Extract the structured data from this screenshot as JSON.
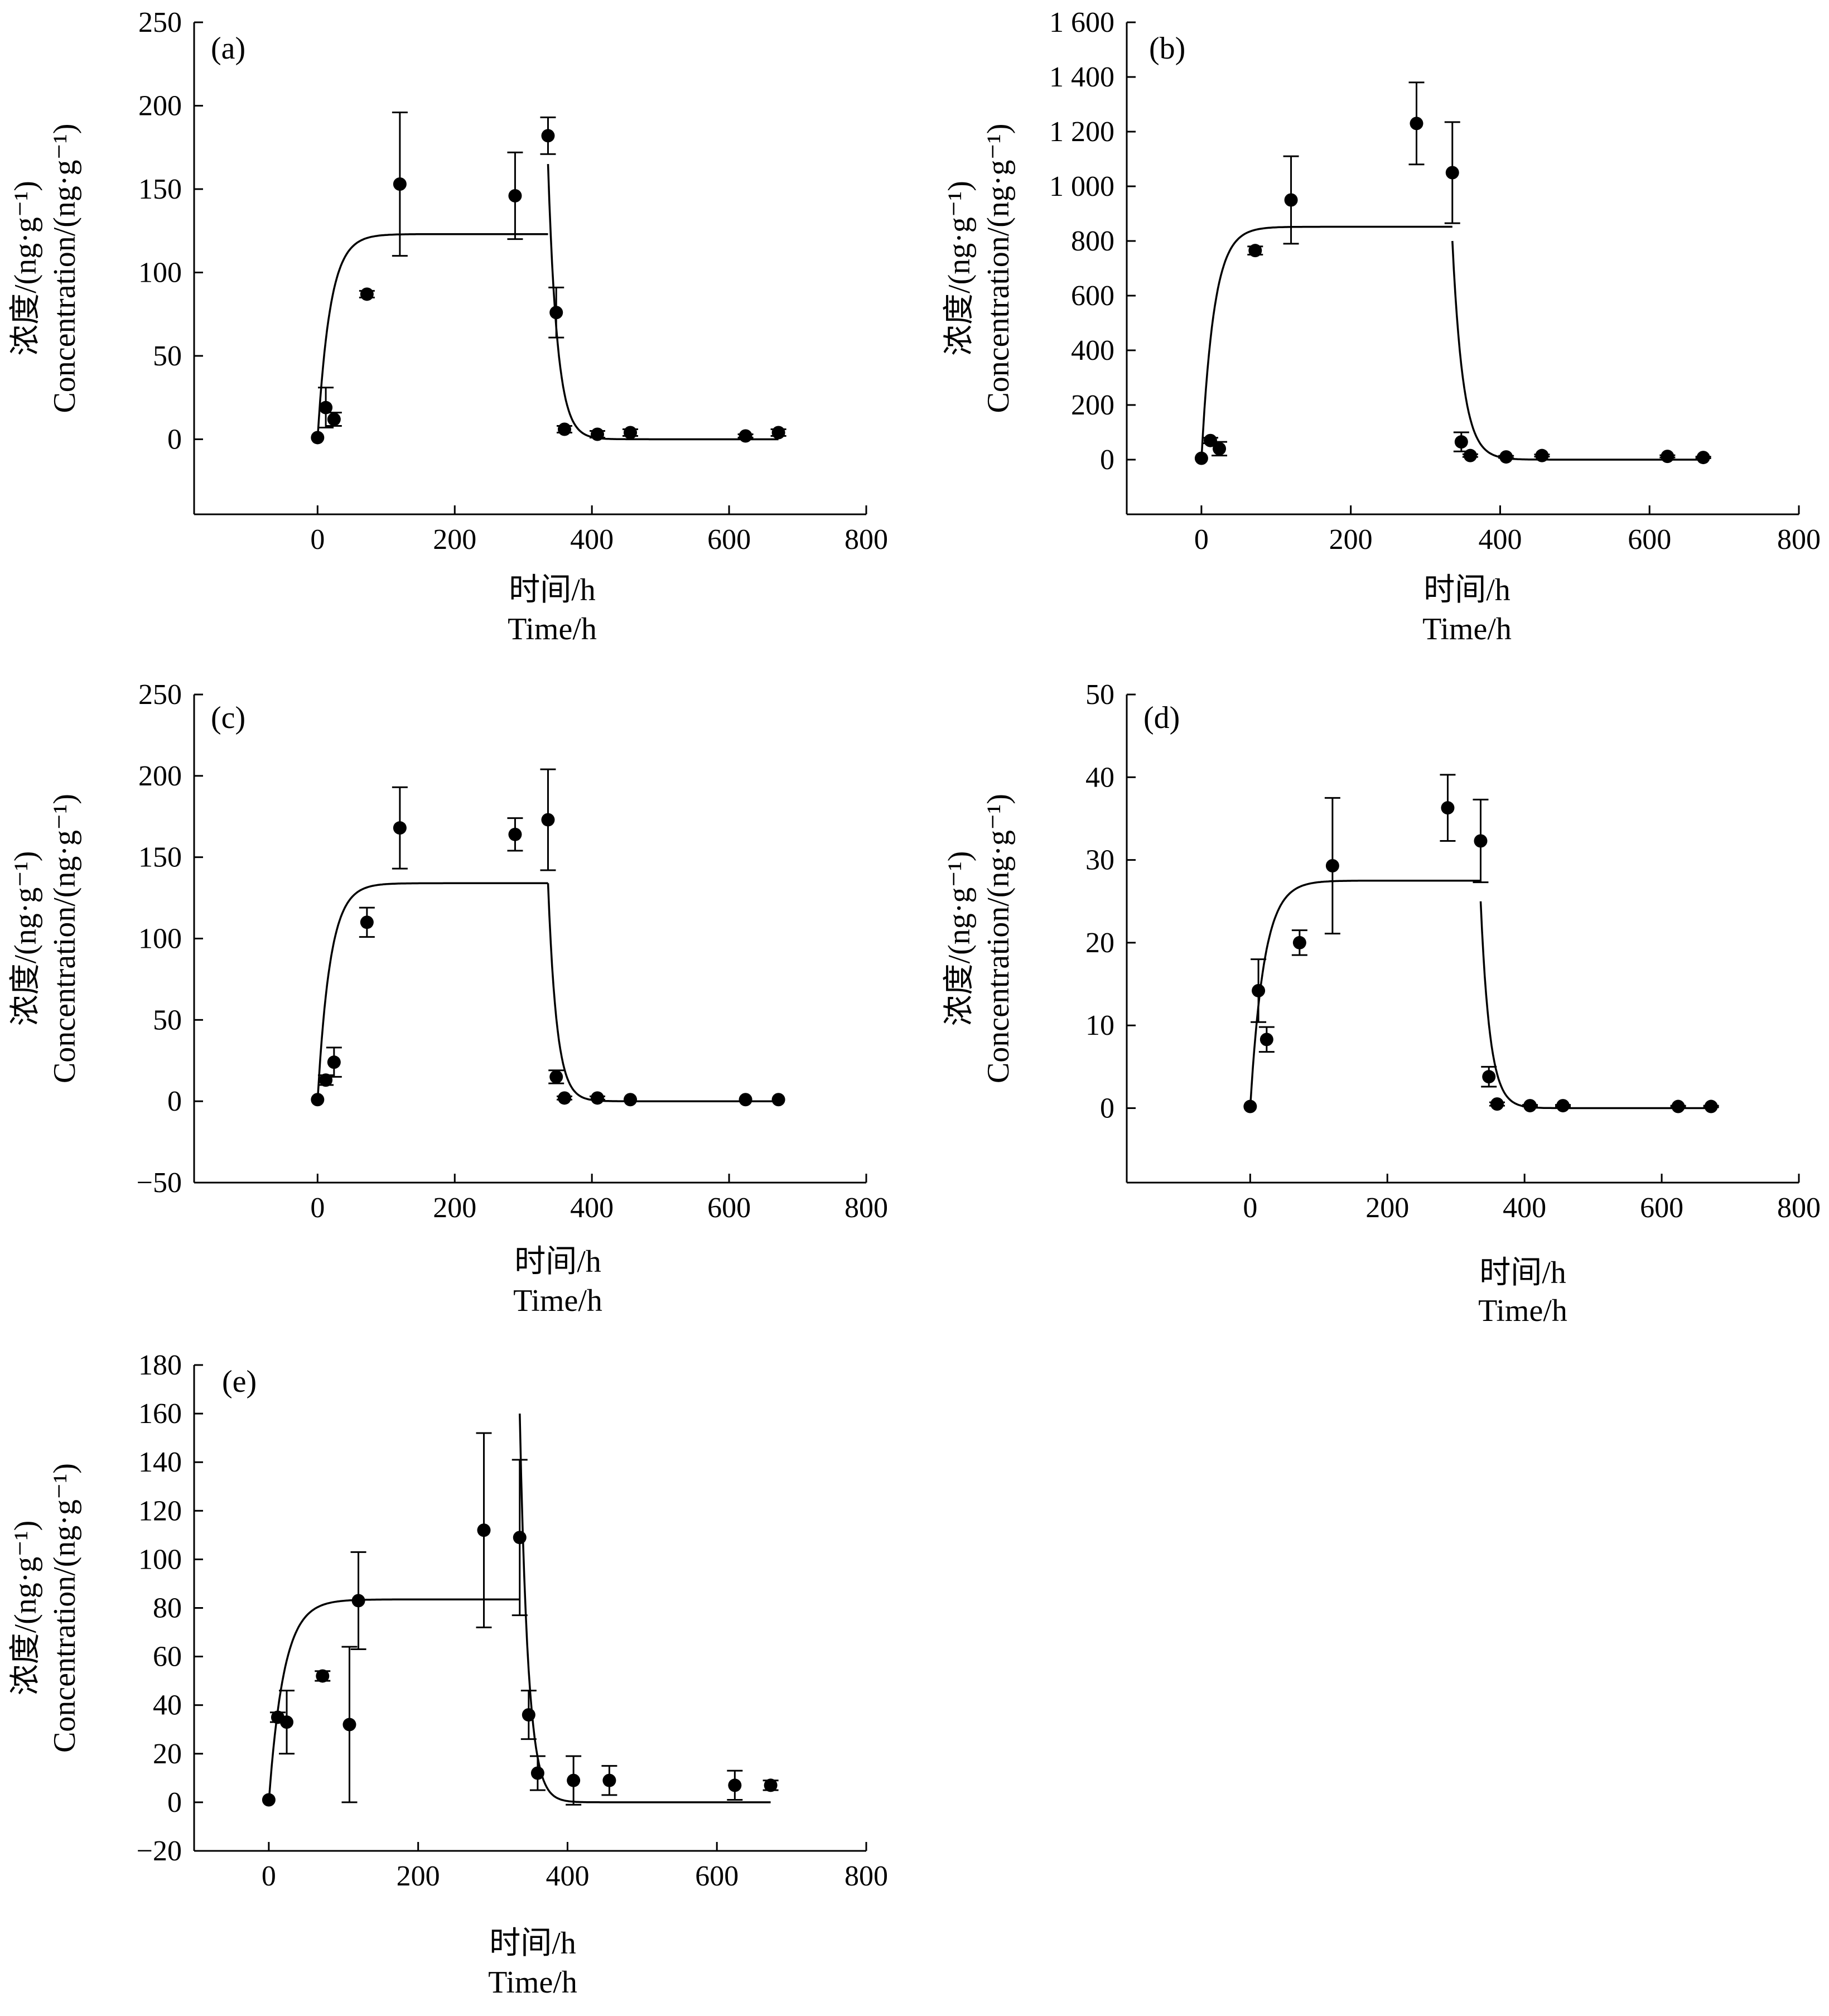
{
  "figure": {
    "panels": [
      {
        "label": "(a)",
        "xlabel_cn": "时间/h",
        "xlabel_en": "Time/h",
        "ylabel_cn": "浓度/(ng·g⁻¹)",
        "ylabel_en": "Concentration/(ng·g⁻¹)"
      },
      {
        "label": "(b)",
        "xlabel_cn": "时间/h",
        "xlabel_en": "Time/h",
        "ylabel_cn": "浓度/(ng·g⁻¹)",
        "ylabel_en": "Concentration/(ng·g⁻¹)"
      },
      {
        "label": "(c)",
        "xlabel_cn": "时间/h",
        "xlabel_en": "Time/h",
        "ylabel_cn": "浓度/(ng·g⁻¹)",
        "ylabel_en": "Concentration/(ng·g⁻¹)"
      },
      {
        "label": "(d)",
        "xlabel_cn": "时间/h",
        "xlabel_en": "Time/h",
        "ylabel_cn": "浓度/(ng·g⁻¹)",
        "ylabel_en": "Concentration/(ng·g⁻¹)"
      },
      {
        "label": "(e)",
        "xlabel_cn": "时间/h",
        "xlabel_en": "Time/h",
        "ylabel_cn": "浓度/(ng·g⁻¹)",
        "ylabel_en": "Concentration/(ng·g⁻¹)"
      }
    ]
  },
  "chart_data": [
    {
      "type": "scatter",
      "panel": "(a)",
      "xlim": [
        -180,
        800
      ],
      "ylim": [
        -45,
        250
      ],
      "xticks": [
        0,
        200,
        400,
        600,
        800
      ],
      "xtick_labels": [
        "0",
        "200",
        "400",
        "600",
        "800"
      ],
      "yticks": [
        0,
        50,
        100,
        150,
        200,
        250
      ],
      "ytick_labels": [
        "0",
        "50",
        "100",
        "150",
        "200",
        "250"
      ],
      "points": [
        {
          "x": 0,
          "y": 1,
          "err": 0
        },
        {
          "x": 12,
          "y": 19,
          "err": 12
        },
        {
          "x": 24,
          "y": 12,
          "err": 4
        },
        {
          "x": 72,
          "y": 87,
          "err": 2
        },
        {
          "x": 120,
          "y": 153,
          "err": 43
        },
        {
          "x": 288,
          "y": 146,
          "err": 26
        },
        {
          "x": 336,
          "y": 182,
          "err": 11
        },
        {
          "x": 348,
          "y": 76,
          "err": 15
        },
        {
          "x": 360,
          "y": 6,
          "err": 2
        },
        {
          "x": 408,
          "y": 3,
          "err": 2
        },
        {
          "x": 456,
          "y": 4,
          "err": 2
        },
        {
          "x": 624,
          "y": 2,
          "err": 1
        },
        {
          "x": 672,
          "y": 4,
          "err": 2
        }
      ],
      "fit": {
        "uptake_plateau": 123,
        "uptake_rate": 0.055,
        "depuration_start": 336,
        "depuration_c0": 165,
        "depuration_rate": 0.075
      }
    },
    {
      "type": "scatter",
      "panel": "(b)",
      "xlim": [
        -100,
        800
      ],
      "ylim": [
        -200,
        1600
      ],
      "xticks": [
        0,
        200,
        400,
        600,
        800
      ],
      "xtick_labels": [
        "0",
        "200",
        "400",
        "600",
        "800"
      ],
      "yticks": [
        0,
        200,
        400,
        600,
        800,
        1000,
        1200,
        1400,
        1600
      ],
      "ytick_labels": [
        "0",
        "200",
        "400",
        "600",
        "800",
        "1 000",
        "1 200",
        "1 400",
        "1 600"
      ],
      "points": [
        {
          "x": 0,
          "y": 5,
          "err": 0
        },
        {
          "x": 12,
          "y": 70,
          "err": 10
        },
        {
          "x": 24,
          "y": 40,
          "err": 25
        },
        {
          "x": 72,
          "y": 765,
          "err": 15
        },
        {
          "x": 120,
          "y": 950,
          "err": 160
        },
        {
          "x": 288,
          "y": 1230,
          "err": 150
        },
        {
          "x": 336,
          "y": 1050,
          "err": 185
        },
        {
          "x": 348,
          "y": 65,
          "err": 35
        },
        {
          "x": 360,
          "y": 15,
          "err": 5
        },
        {
          "x": 408,
          "y": 10,
          "err": 4
        },
        {
          "x": 456,
          "y": 15,
          "err": 4
        },
        {
          "x": 624,
          "y": 12,
          "err": 4
        },
        {
          "x": 672,
          "y": 8,
          "err": 3
        }
      ],
      "fit": {
        "uptake_plateau": 852,
        "uptake_rate": 0.06,
        "depuration_start": 336,
        "depuration_c0": 800,
        "depuration_rate": 0.07
      }
    },
    {
      "type": "scatter",
      "panel": "(c)",
      "xlim": [
        -180,
        800
      ],
      "ylim": [
        -50,
        250
      ],
      "xticks": [
        0,
        200,
        400,
        600,
        800
      ],
      "xtick_labels": [
        "0",
        "200",
        "400",
        "600",
        "800"
      ],
      "yticks": [
        -50,
        0,
        50,
        100,
        150,
        200,
        250
      ],
      "ytick_labels": [
        "−50",
        "0",
        "50",
        "100",
        "150",
        "200",
        "250"
      ],
      "points": [
        {
          "x": 0,
          "y": 1,
          "err": 0
        },
        {
          "x": 12,
          "y": 13,
          "err": 3
        },
        {
          "x": 24,
          "y": 24,
          "err": 9
        },
        {
          "x": 72,
          "y": 110,
          "err": 9
        },
        {
          "x": 120,
          "y": 168,
          "err": 25
        },
        {
          "x": 288,
          "y": 164,
          "err": 10
        },
        {
          "x": 336,
          "y": 173,
          "err": 31
        },
        {
          "x": 348,
          "y": 15,
          "err": 4
        },
        {
          "x": 360,
          "y": 2,
          "err": 1
        },
        {
          "x": 408,
          "y": 2,
          "err": 1
        },
        {
          "x": 456,
          "y": 1,
          "err": 0
        },
        {
          "x": 624,
          "y": 1,
          "err": 0
        },
        {
          "x": 672,
          "y": 1,
          "err": 0
        }
      ],
      "fit": {
        "uptake_plateau": 134,
        "uptake_rate": 0.055,
        "depuration_start": 336,
        "depuration_c0": 134,
        "depuration_rate": 0.08
      }
    },
    {
      "type": "scatter",
      "panel": "(d)",
      "xlim": [
        -180,
        800
      ],
      "ylim": [
        -9,
        50
      ],
      "xticks": [
        0,
        200,
        400,
        600,
        800
      ],
      "xtick_labels": [
        "0",
        "200",
        "400",
        "600",
        "800"
      ],
      "yticks": [
        0,
        10,
        20,
        30,
        40,
        50
      ],
      "ytick_labels": [
        "0",
        "10",
        "20",
        "30",
        "40",
        "50"
      ],
      "points": [
        {
          "x": 0,
          "y": 0.2,
          "err": 0
        },
        {
          "x": 12,
          "y": 14.2,
          "err": 3.8
        },
        {
          "x": 24,
          "y": 8.3,
          "err": 1.5
        },
        {
          "x": 72,
          "y": 20,
          "err": 1.5
        },
        {
          "x": 120,
          "y": 29.3,
          "err": 8.2
        },
        {
          "x": 288,
          "y": 36.3,
          "err": 4
        },
        {
          "x": 336,
          "y": 32.3,
          "err": 5
        },
        {
          "x": 348,
          "y": 3.8,
          "err": 1.2
        },
        {
          "x": 360,
          "y": 0.5,
          "err": 0.2
        },
        {
          "x": 408,
          "y": 0.3,
          "err": 0.1
        },
        {
          "x": 456,
          "y": 0.3,
          "err": 0.1
        },
        {
          "x": 624,
          "y": 0.2,
          "err": 0.1
        },
        {
          "x": 672,
          "y": 0.2,
          "err": 0.1
        }
      ],
      "fit": {
        "uptake_plateau": 27.5,
        "uptake_rate": 0.05,
        "depuration_start": 336,
        "depuration_c0": 25,
        "depuration_rate": 0.075
      }
    },
    {
      "type": "scatter",
      "panel": "(e)",
      "xlim": [
        -100,
        800
      ],
      "ylim": [
        -20,
        180
      ],
      "xticks": [
        0,
        200,
        400,
        600,
        800
      ],
      "xtick_labels": [
        "0",
        "200",
        "400",
        "600",
        "800"
      ],
      "yticks": [
        -20,
        0,
        20,
        40,
        60,
        80,
        100,
        120,
        140,
        160,
        180
      ],
      "ytick_labels": [
        "−20",
        "0",
        "20",
        "40",
        "60",
        "80",
        "100",
        "120",
        "140",
        "160",
        "180"
      ],
      "points": [
        {
          "x": 0,
          "y": 1,
          "err": 0
        },
        {
          "x": 12,
          "y": 35,
          "err": 2
        },
        {
          "x": 24,
          "y": 33,
          "err": 13
        },
        {
          "x": 72,
          "y": 52,
          "err": 2
        },
        {
          "x": 108,
          "y": 32,
          "err": 32
        },
        {
          "x": 120,
          "y": 83,
          "err": 20
        },
        {
          "x": 288,
          "y": 112,
          "err": 40
        },
        {
          "x": 336,
          "y": 109,
          "err": 32
        },
        {
          "x": 348,
          "y": 36,
          "err": 10
        },
        {
          "x": 360,
          "y": 12,
          "err": 7
        },
        {
          "x": 408,
          "y": 9,
          "err": 10
        },
        {
          "x": 456,
          "y": 9,
          "err": 6
        },
        {
          "x": 624,
          "y": 7,
          "err": 6
        },
        {
          "x": 672,
          "y": 7,
          "err": 2
        }
      ],
      "fit": {
        "uptake_plateau": 83.5,
        "uptake_rate": 0.05,
        "depuration_start": 336,
        "depuration_c0": 160,
        "depuration_rate": 0.09
      }
    }
  ]
}
